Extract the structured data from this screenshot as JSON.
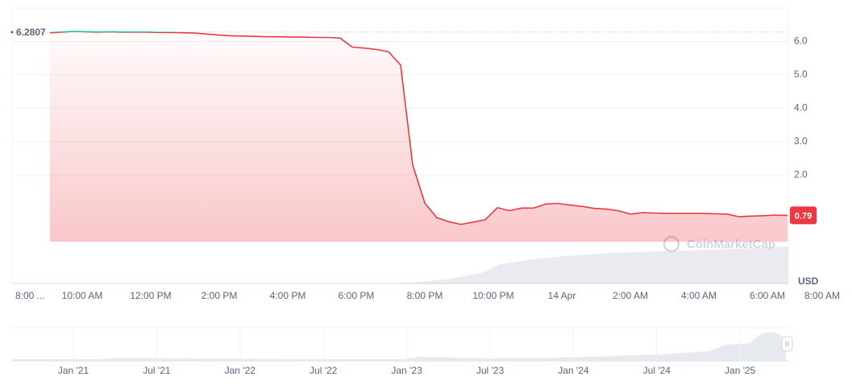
{
  "chart_data": {
    "type": "line",
    "reference_price": 6.2807,
    "up_color": "#16c784",
    "down_color": "#ea3943",
    "unit": "USD",
    "watermark": "CoinMarketCap",
    "ylim": [
      -1.25,
      7.0
    ],
    "yticks": [
      {
        "value": 2,
        "label": "2.0"
      },
      {
        "value": 3,
        "label": "3.0"
      },
      {
        "value": 4,
        "label": "4.0"
      },
      {
        "value": 5,
        "label": "5.0"
      },
      {
        "value": 6,
        "label": "6.0"
      }
    ],
    "grid": true,
    "x_tick_labels": [
      "8:00 ...",
      "10:00 AM",
      "12:00 PM",
      "2:00 PM",
      "4:00 PM",
      "6:00 PM",
      "8:00 PM",
      "10:00 PM",
      "14 Apr",
      "2:00 AM",
      "4:00 AM",
      "6:00 AM",
      "8:00 AM"
    ],
    "series": [
      {
        "values": [
          6.26,
          6.28,
          6.3,
          6.29,
          6.28,
          6.29,
          6.28,
          6.28,
          6.28,
          6.27,
          6.27,
          6.26,
          6.25,
          6.22,
          6.19,
          6.17,
          6.16,
          6.15,
          6.14,
          6.14,
          6.13,
          6.13,
          6.12,
          6.12,
          6.1,
          5.83,
          5.8,
          5.76,
          5.69,
          5.29,
          2.3,
          1.16,
          0.72,
          0.6,
          0.52,
          0.59,
          0.66,
          1.02,
          0.93,
          1.01,
          1.01,
          1.13,
          1.15,
          1.1,
          1.06,
          1.0,
          0.98,
          0.93,
          0.83,
          0.87,
          0.86,
          0.85,
          0.85,
          0.85,
          0.85,
          0.84,
          0.83,
          0.75,
          0.77,
          0.78,
          0.8,
          0.79
        ]
      }
    ],
    "navigator": {
      "x_tick_labels": [
        "Jan '21",
        "Jul '21",
        "Jan '22",
        "Jul '22",
        "Jan '23",
        "Jul '23",
        "Jan '24",
        "Jul '24",
        "Jan '25"
      ]
    }
  }
}
